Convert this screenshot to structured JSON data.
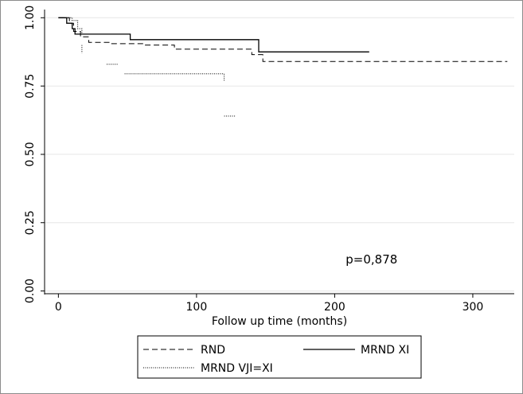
{
  "chart_data": {
    "type": "line",
    "subtype": "kaplan-meier step curves",
    "title": "",
    "xlabel": "Follow up time (months)",
    "ylabel": "",
    "xlim": [
      -10,
      330
    ],
    "ylim": [
      -0.01,
      1.03
    ],
    "xticks": [
      0,
      100,
      200,
      300
    ],
    "xtick_labels": [
      "0",
      "100",
      "200",
      "300"
    ],
    "yticks": [
      0,
      0.25,
      0.5,
      0.75,
      1.0
    ],
    "ytick_labels": [
      "0.00",
      "0.25",
      "0.50",
      "0.75",
      "1.00"
    ],
    "grid": "horizontal, light gray",
    "annotation": {
      "text": "p=0,878",
      "x": 208,
      "y": 0.1
    },
    "legend": {
      "placement": "bottom, two columns"
    },
    "series": [
      {
        "name": "RND",
        "style": "dashed",
        "points": [
          [
            0,
            1.0
          ],
          [
            8,
            1.0
          ],
          [
            8,
            0.98
          ],
          [
            11,
            0.98
          ],
          [
            11,
            0.95
          ],
          [
            16,
            0.95
          ],
          [
            16,
            0.93
          ],
          [
            22,
            0.93
          ],
          [
            22,
            0.91
          ],
          [
            38,
            0.91
          ],
          [
            38,
            0.905
          ],
          [
            62,
            0.905
          ],
          [
            62,
            0.9
          ],
          [
            84,
            0.9
          ],
          [
            84,
            0.885
          ],
          [
            140,
            0.885
          ],
          [
            140,
            0.865
          ],
          [
            148,
            0.865
          ],
          [
            148,
            0.84
          ],
          [
            325,
            0.84
          ]
        ]
      },
      {
        "name": "MRND XI",
        "style": "solid",
        "points": [
          [
            0,
            1.0
          ],
          [
            6,
            1.0
          ],
          [
            6,
            0.98
          ],
          [
            10,
            0.98
          ],
          [
            10,
            0.96
          ],
          [
            12,
            0.96
          ],
          [
            12,
            0.94
          ],
          [
            52,
            0.94
          ],
          [
            52,
            0.92
          ],
          [
            145,
            0.92
          ],
          [
            145,
            0.875
          ],
          [
            225,
            0.875
          ]
        ]
      },
      {
        "name": "MRND VJI=XI",
        "style": "dotted",
        "segments": [
          [
            [
              0,
              1.0
            ],
            [
              10,
              1.0
            ],
            [
              10,
              0.99
            ],
            [
              14,
              0.99
            ],
            [
              14,
              0.96
            ],
            [
              17,
              0.96
            ],
            [
              17,
              0.94
            ]
          ],
          [
            [
              17,
              0.9
            ],
            [
              17,
              0.87
            ]
          ],
          [
            [
              35,
              0.83
            ],
            [
              43,
              0.83
            ]
          ],
          [
            [
              48,
              0.795
            ],
            [
              120,
              0.795
            ],
            [
              120,
              0.77
            ]
          ],
          [
            [
              120,
              0.64
            ],
            [
              128,
              0.64
            ]
          ]
        ]
      }
    ]
  },
  "colors": {
    "line": "#000000",
    "grid": "#e6e6e6",
    "border": "#8c8c8c",
    "plot_bg": "#ffffff"
  }
}
